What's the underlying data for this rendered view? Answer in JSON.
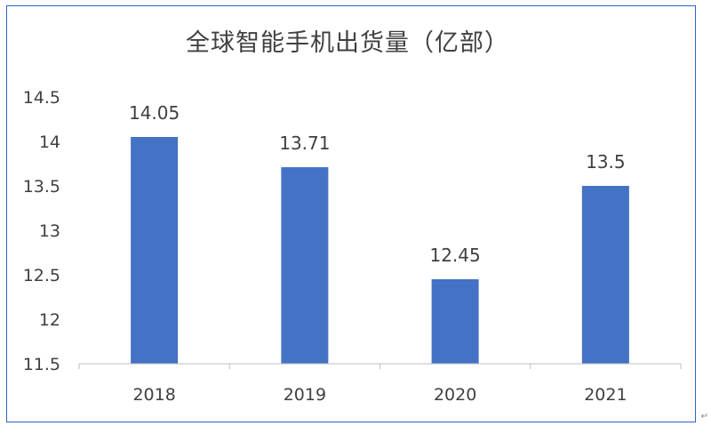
{
  "chart_data": {
    "type": "bar",
    "title": "全球智能手机出货量（亿部）",
    "categories": [
      "2018",
      "2019",
      "2020",
      "2021"
    ],
    "values": [
      14.05,
      13.71,
      12.45,
      13.5
    ],
    "data_labels": [
      "14.05",
      "13.71",
      "12.45",
      "13.5"
    ],
    "ylim": [
      11.5,
      14.5
    ],
    "yticks": [
      "11.5",
      "12",
      "12.5",
      "13",
      "13.5",
      "14",
      "14.5"
    ],
    "xlabel": "",
    "ylabel": "",
    "grid": false,
    "legend": "none",
    "bar_color": "#4472c4",
    "axis_color": "#bfbfbf",
    "text_color": "#404040",
    "border_color": "#2f63c8"
  },
  "corner_mark": "↵"
}
